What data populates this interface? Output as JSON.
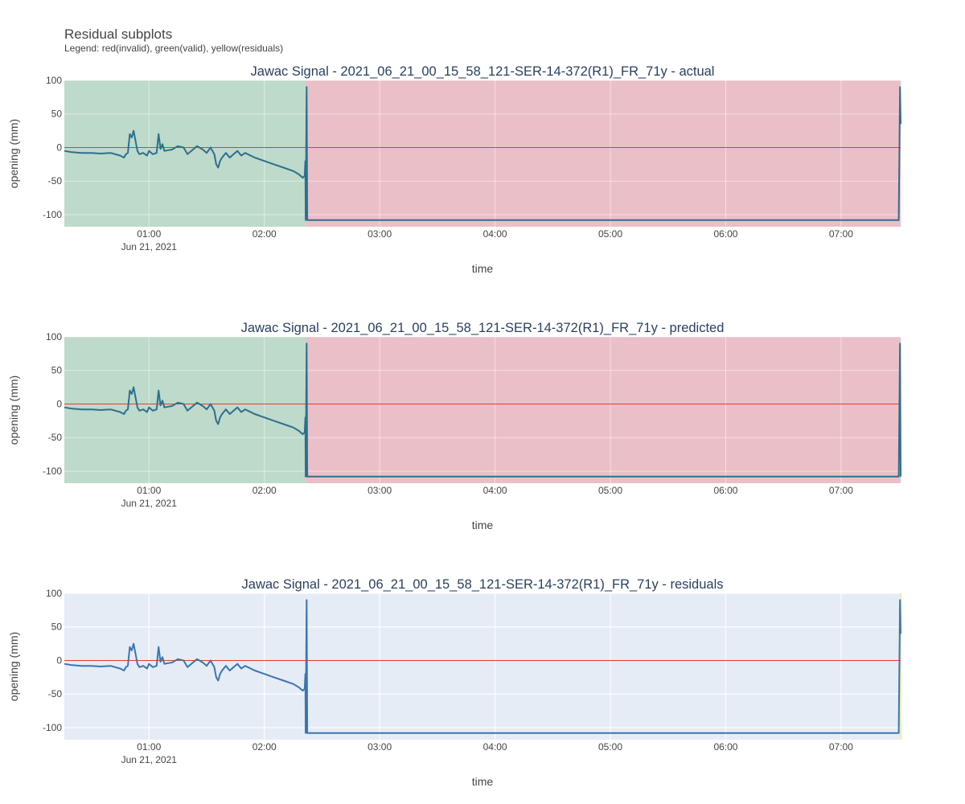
{
  "figure": {
    "title": "Residual subplots",
    "subtitle": "Legend: red(invalid), green(valid), yellow(residuals)"
  },
  "colors": {
    "plot_bg": "#e5ecf6",
    "grid": "#ffffff",
    "valid_region": "#b8d8c5",
    "invalid_region": "#ebbac3",
    "residual_region": "#e8eea8",
    "signal_line": "#2e6f8e",
    "residual_line": "#3b75af",
    "zero_line": "#e8392f"
  },
  "chart_data": [
    {
      "type": "line",
      "title": "Jawac Signal - 2021_06_21_00_15_58_121-SER-14-372(R1)_FR_71y - actual",
      "xlabel": "time",
      "ylabel": "opening (mm)",
      "x_range": [
        "2021-06-21 00:15:58",
        "2021-06-21 07:31:00"
      ],
      "ylim": [
        -118,
        100
      ],
      "x_ticks": [
        "01:00",
        "02:00",
        "03:00",
        "04:00",
        "05:00",
        "06:00",
        "07:00"
      ],
      "x_tick_sublabel": "Jun 21, 2021",
      "y_ticks": [
        100,
        50,
        0,
        -50,
        -100
      ],
      "regions": [
        {
          "label": "valid",
          "start": "00:15:58",
          "end": "02:21:30"
        },
        {
          "label": "invalid",
          "start": "02:21:30",
          "end": "07:31:00"
        }
      ],
      "zero_line": 0,
      "series": [
        {
          "time": [
            "00:15:58",
            "00:20",
            "00:25",
            "00:30",
            "00:35",
            "00:40",
            "00:45",
            "00:47",
            "00:48",
            "00:49",
            "00:50",
            "00:51",
            "00:52",
            "00:53",
            "00:54",
            "00:55",
            "00:57",
            "00:59",
            "01:00",
            "01:02",
            "01:04",
            "01:05",
            "01:06",
            "01:07",
            "01:08",
            "01:10",
            "01:12",
            "01:15",
            "01:18",
            "01:20",
            "01:22",
            "01:25",
            "01:28",
            "01:30",
            "01:32",
            "01:34",
            "01:35",
            "01:36",
            "01:37",
            "01:38",
            "01:40",
            "01:42",
            "01:44",
            "01:46",
            "01:48",
            "01:50",
            "01:55",
            "02:00",
            "02:05",
            "02:10",
            "02:15",
            "02:18",
            "02:20",
            "02:21",
            "02:21:20",
            "02:21:30",
            "02:22",
            "02:22:20",
            "02:30",
            "03:00",
            "04:00",
            "05:00",
            "06:00",
            "07:00",
            "07:30",
            "07:30:40",
            "07:31:00"
          ],
          "values": [
            -5,
            -7,
            -8,
            -8,
            -9,
            -8,
            -12,
            -15,
            -10,
            -8,
            20,
            15,
            25,
            10,
            -5,
            -10,
            -8,
            -12,
            -5,
            -10,
            -8,
            20,
            -2,
            5,
            -5,
            -4,
            -3,
            2,
            0,
            -10,
            -5,
            2,
            -3,
            -8,
            0,
            -10,
            -25,
            -30,
            -20,
            -15,
            -8,
            -15,
            -10,
            -5,
            -12,
            -8,
            -15,
            -20,
            -25,
            -30,
            -35,
            -40,
            -45,
            -42,
            -20,
            -108,
            90,
            -108,
            -108,
            -108,
            -108,
            -108,
            -108,
            -108,
            -108,
            90,
            35
          ]
        }
      ]
    },
    {
      "type": "line",
      "title": "Jawac Signal - 2021_06_21_00_15_58_121-SER-14-372(R1)_FR_71y - predicted",
      "xlabel": "time",
      "ylabel": "opening (mm)",
      "x_range": [
        "2021-06-21 00:15:58",
        "2021-06-21 07:31:00"
      ],
      "ylim": [
        -118,
        100
      ],
      "x_ticks": [
        "01:00",
        "02:00",
        "03:00",
        "04:00",
        "05:00",
        "06:00",
        "07:00"
      ],
      "x_tick_sublabel": "Jun 21, 2021",
      "y_ticks": [
        100,
        50,
        0,
        -50,
        -100
      ],
      "regions": [
        {
          "label": "valid",
          "start": "00:15:58",
          "end": "02:21:30"
        },
        {
          "label": "invalid",
          "start": "02:21:30",
          "end": "07:31:00"
        }
      ],
      "zero_line": 0,
      "series": [
        {
          "time": [
            "00:15:58",
            "00:20",
            "00:25",
            "00:30",
            "00:35",
            "00:40",
            "00:45",
            "00:47",
            "00:48",
            "00:49",
            "00:50",
            "00:51",
            "00:52",
            "00:53",
            "00:54",
            "00:55",
            "00:57",
            "00:59",
            "01:00",
            "01:02",
            "01:04",
            "01:05",
            "01:06",
            "01:07",
            "01:08",
            "01:10",
            "01:12",
            "01:15",
            "01:18",
            "01:20",
            "01:22",
            "01:25",
            "01:28",
            "01:30",
            "01:32",
            "01:34",
            "01:35",
            "01:36",
            "01:37",
            "01:38",
            "01:40",
            "01:42",
            "01:44",
            "01:46",
            "01:48",
            "01:50",
            "01:55",
            "02:00",
            "02:05",
            "02:10",
            "02:15",
            "02:18",
            "02:20",
            "02:21",
            "02:21:20",
            "02:21:30",
            "02:22",
            "02:22:20",
            "02:30",
            "03:00",
            "04:00",
            "05:00",
            "06:00",
            "07:00",
            "07:30",
            "07:30:40",
            "07:31:00"
          ],
          "values": [
            -5,
            -7,
            -8,
            -8,
            -9,
            -8,
            -12,
            -15,
            -10,
            -8,
            20,
            15,
            25,
            10,
            -5,
            -10,
            -8,
            -12,
            -5,
            -10,
            -8,
            20,
            -2,
            5,
            -5,
            -4,
            -3,
            2,
            0,
            -10,
            -5,
            2,
            -3,
            -8,
            0,
            -10,
            -25,
            -30,
            -20,
            -15,
            -8,
            -15,
            -10,
            -5,
            -12,
            -8,
            -15,
            -20,
            -25,
            -30,
            -35,
            -40,
            -45,
            -42,
            -20,
            -108,
            90,
            -108,
            -108,
            -108,
            -108,
            -108,
            -108,
            -108,
            -108,
            90,
            -108
          ]
        }
      ]
    },
    {
      "type": "line",
      "title": "Jawac Signal - 2021_06_21_00_15_58_121-SER-14-372(R1)_FR_71y - residuals",
      "xlabel": "time",
      "ylabel": "opening (mm)",
      "x_range": [
        "2021-06-21 00:15:58",
        "2021-06-21 07:31:00"
      ],
      "ylim": [
        -118,
        100
      ],
      "x_ticks": [
        "01:00",
        "02:00",
        "03:00",
        "04:00",
        "05:00",
        "06:00",
        "07:00"
      ],
      "x_tick_sublabel": "Jun 21, 2021",
      "y_ticks": [
        100,
        50,
        0,
        -50,
        -100
      ],
      "regions": [
        {
          "label": "residuals",
          "start": "07:30:40",
          "end": "07:31:00"
        }
      ],
      "zero_line": 0,
      "series": [
        {
          "time": [
            "00:15:58",
            "00:20",
            "00:25",
            "00:30",
            "00:35",
            "00:40",
            "00:45",
            "00:47",
            "00:48",
            "00:49",
            "00:50",
            "00:51",
            "00:52",
            "00:53",
            "00:54",
            "00:55",
            "00:57",
            "00:59",
            "01:00",
            "01:02",
            "01:04",
            "01:05",
            "01:06",
            "01:07",
            "01:08",
            "01:10",
            "01:12",
            "01:15",
            "01:18",
            "01:20",
            "01:22",
            "01:25",
            "01:28",
            "01:30",
            "01:32",
            "01:34",
            "01:35",
            "01:36",
            "01:37",
            "01:38",
            "01:40",
            "01:42",
            "01:44",
            "01:46",
            "01:48",
            "01:50",
            "01:55",
            "02:00",
            "02:05",
            "02:10",
            "02:15",
            "02:18",
            "02:20",
            "02:21",
            "02:21:20",
            "02:21:30",
            "02:22",
            "02:22:20",
            "02:30",
            "03:00",
            "04:00",
            "05:00",
            "06:00",
            "07:00",
            "07:30",
            "07:30:40",
            "07:31:00"
          ],
          "values": [
            -5,
            -7,
            -8,
            -8,
            -9,
            -8,
            -12,
            -15,
            -10,
            -8,
            20,
            15,
            25,
            10,
            -5,
            -10,
            -8,
            -12,
            -5,
            -10,
            -8,
            20,
            -2,
            5,
            -5,
            -4,
            -3,
            2,
            0,
            -10,
            -5,
            2,
            -3,
            -8,
            0,
            -10,
            -25,
            -30,
            -20,
            -15,
            -8,
            -15,
            -10,
            -5,
            -12,
            -8,
            -15,
            -20,
            -25,
            -30,
            -35,
            -40,
            -45,
            -42,
            -20,
            -108,
            90,
            -108,
            -108,
            -108,
            -108,
            -108,
            -108,
            -108,
            -108,
            90,
            40
          ]
        }
      ]
    }
  ]
}
